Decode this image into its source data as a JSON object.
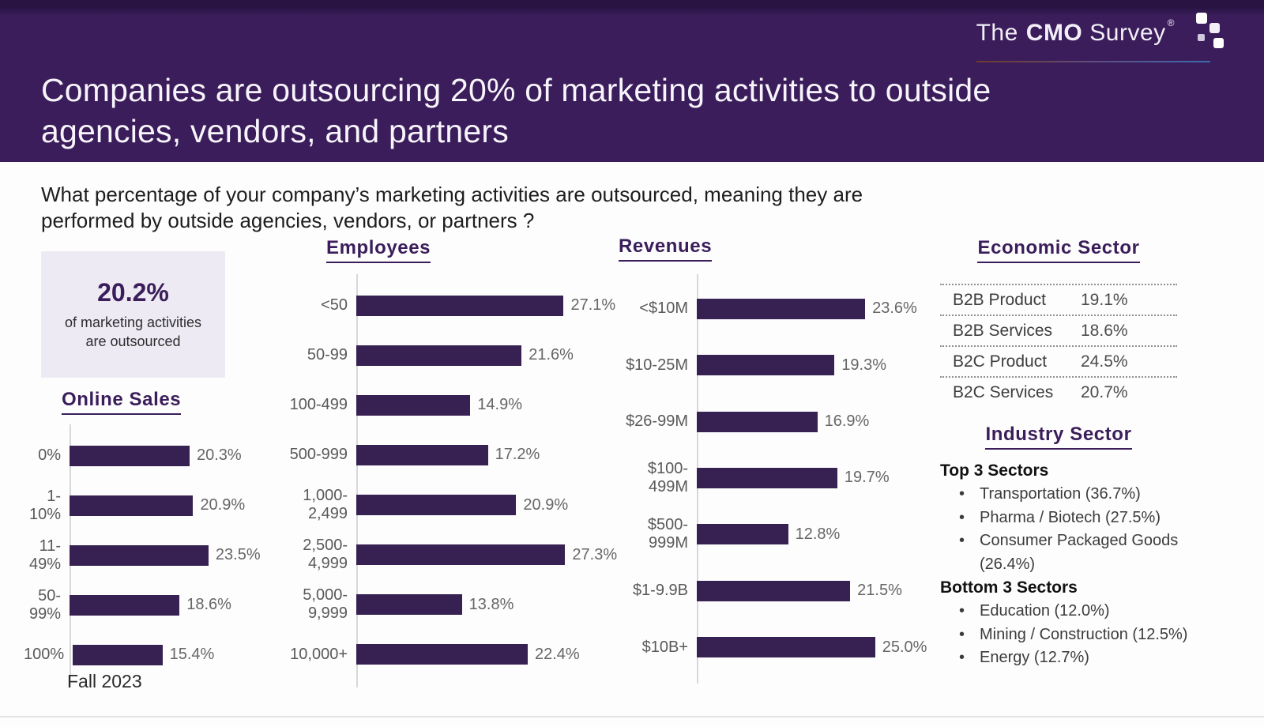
{
  "colors": {
    "accent": "#3a1d5a",
    "header_bg": "#3a1d5a",
    "header_bg_top": "#281342",
    "bar": "#372153",
    "stat_box_bg": "#edeaf4"
  },
  "logo": {
    "word1": "The",
    "word2": "CMO",
    "word3": "Survey",
    "registered": "®"
  },
  "header": {
    "title": "Companies are outsourcing 20% of marketing activities to outside agencies, vendors, and partners"
  },
  "question": "What percentage of your company’s marketing activities are outsourced, meaning they are performed by outside agencies, vendors, or partners ?",
  "highlight": {
    "value": "20.2%",
    "caption": "of marketing activities are outsourced"
  },
  "footer_note": "Fall 2023",
  "chart_data": [
    {
      "type": "bar",
      "orientation": "horizontal",
      "title": "Online Sales",
      "categories": [
        "0%",
        "1-10%",
        "11-49%",
        "50-99%",
        "100%"
      ],
      "values": [
        20.3,
        20.9,
        23.5,
        18.6,
        15.4
      ],
      "unit": "%",
      "xlim": [
        0,
        35
      ],
      "grid": false,
      "legend": false
    },
    {
      "type": "bar",
      "orientation": "horizontal",
      "title": "Employees",
      "categories": [
        "<50",
        "50-99",
        "100-499",
        "500-999",
        "1,000-\n2,499",
        "2,500-\n4,999",
        "5,000-\n9,999",
        "10,000+"
      ],
      "values": [
        27.1,
        21.6,
        14.9,
        17.2,
        20.9,
        27.3,
        13.8,
        22.4
      ],
      "unit": "%",
      "xlim": [
        0,
        35
      ],
      "grid": false,
      "legend": false
    },
    {
      "type": "bar",
      "orientation": "horizontal",
      "title": "Revenues",
      "categories": [
        "<$10M",
        "$10-25M",
        "$26-99M",
        "$100-499M",
        "$500-999M",
        "$1-9.9B",
        "$10B+"
      ],
      "values": [
        23.6,
        19.3,
        16.9,
        19.7,
        12.8,
        21.5,
        25.0
      ],
      "unit": "%",
      "xlim": [
        0,
        33
      ],
      "grid": false,
      "legend": false
    }
  ],
  "economic_sector": {
    "title": "Economic Sector",
    "rows": [
      {
        "label": "B2B Product",
        "value": "19.1%"
      },
      {
        "label": "B2B Services",
        "value": "18.6%"
      },
      {
        "label": "B2C Product",
        "value": "24.5%"
      },
      {
        "label": "B2C Services",
        "value": "20.7%"
      }
    ]
  },
  "industry_sector": {
    "title": "Industry Sector",
    "groups": [
      {
        "heading": "Top 3 Sectors",
        "items": [
          "Transportation (36.7%)",
          "Pharma / Biotech (27.5%)",
          "Consumer Packaged Goods (26.4%)"
        ]
      },
      {
        "heading": "Bottom 3 Sectors",
        "items": [
          "Education (12.0%)",
          "Mining / Construction (12.5%)",
          "Energy (12.7%)"
        ]
      }
    ]
  }
}
